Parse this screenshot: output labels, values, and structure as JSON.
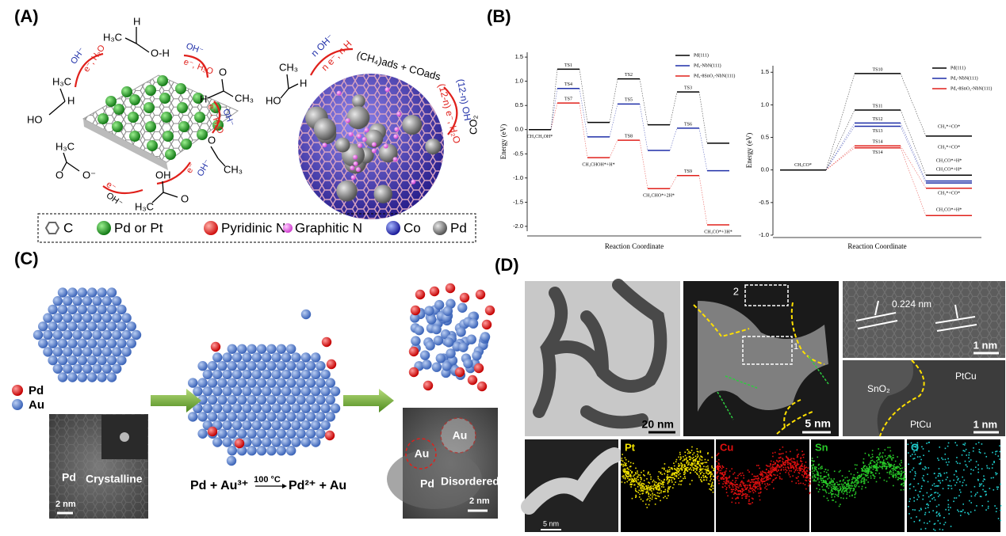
{
  "panel_a": {
    "label": "(A)",
    "left_arrows": [
      "OH⁻",
      "e⁻, H₂O",
      "OH⁻",
      "e⁻, H₂O",
      "OH⁻",
      "e⁻, H₂O",
      "e⁻",
      "OH⁻",
      "e⁻",
      "OH⁻"
    ],
    "molecules": [
      "H",
      "H₃C",
      "O-H",
      "H₃C",
      "H",
      "HO",
      "O",
      "H",
      "CH₃",
      "O",
      "CH₃",
      "H₃C",
      "O",
      "O⁻",
      "OH",
      "H₃C",
      "O"
    ],
    "right_arrows": [
      "n OH⁻",
      "n e⁻, n H",
      "(CH₄)ads + COads",
      "(12-n) OH⁻",
      "(12-n) e⁻, H₂O",
      "CO₂"
    ],
    "right_molecule": [
      "CH₃",
      "H",
      "HO"
    ],
    "legend": [
      "C",
      "Pd or Pt",
      "Pyridinic N",
      "Graphitic N",
      "Co",
      "Pd"
    ]
  },
  "panel_b": {
    "label": "(B)",
    "charts": [
      {
        "type": "energy-level",
        "ylabel": "Energy (eV)",
        "xlabel": "Reaction Coordinate",
        "ylim": [
          -2.1,
          1.6
        ],
        "yticks": [
          {
            "value": -2,
            "label": "-2.0"
          },
          -1.5,
          {
            "value": -1,
            "label": "-1.0"
          },
          -0.5,
          {
            "value": 0,
            "label": "0.0"
          },
          0.5,
          {
            "value": 1,
            "label": "1.0"
          },
          1.5
        ],
        "categories": [
          "CH₃CH₂OH*",
          null,
          "CH₃CHOH*+H*",
          null,
          "CH₃CHO*+2H*",
          null,
          "CH₃CO*+3H*"
        ],
        "series": [
          {
            "name": "Pd(111)",
            "color": "#000000",
            "paths": [
              {
                "values": [
                  0,
                  1.25,
                  0.15,
                  1.05,
                  0.1,
                  0.78,
                  -0.28
                ],
                "point_labels": [
                  null,
                  "TS1",
                  null,
                  "TS2",
                  null,
                  "TS3",
                  null
                ]
              }
            ]
          },
          {
            "name": "Pd₄-NbN(111)",
            "color": "#1f2fa8",
            "paths": [
              {
                "values": [
                  0,
                  0.85,
                  -0.15,
                  0.53,
                  -0.43,
                  0.03,
                  -0.85
                ],
                "point_labels": [
                  null,
                  "TS4",
                  null,
                  "TS5",
                  null,
                  "TS6",
                  null
                ]
              }
            ]
          },
          {
            "name": "Pd₄-8SnO₂-NbN(111)",
            "color": "#e0201b",
            "paths": [
              {
                "values": [
                  0,
                  0.55,
                  -0.58,
                  -0.22,
                  -1.22,
                  -0.95,
                  -1.97
                ],
                "point_labels": [
                  null,
                  "TS7",
                  null,
                  "TS8",
                  null,
                  "TS9",
                  null
                ]
              }
            ]
          }
        ]
      },
      {
        "type": "energy-level",
        "ylabel": "Energy (eV)",
        "xlabel": "Reaction Coordinate",
        "ylim": [
          -1.0,
          1.6
        ],
        "yticks": [
          {
            "value": -1,
            "label": "-1.0"
          },
          -0.5,
          {
            "value": 0,
            "label": "0.0"
          },
          0.5,
          {
            "value": 1,
            "label": "1.0"
          },
          1.5
        ],
        "categories": [
          "CH₃CO*",
          null,
          null
        ],
        "series": [
          {
            "name": "Pd(111)",
            "color": "#000000",
            "paths": [
              {
                "values": [
                  0,
                  1.48,
                  0.52
                ],
                "point_labels": [
                  null,
                  "TS10",
                  null
                ]
              },
              {
                "values": [
                  0,
                  0.92,
                  -0.08
                ],
                "point_labels": [
                  null,
                  "TS11",
                  null
                ]
              }
            ]
          },
          {
            "name": "Pd₄-NbN(111)",
            "color": "#1f2fa8",
            "paths": [
              {
                "values": [
                  0,
                  0.72,
                  -0.17
                ],
                "point_labels": [
                  null,
                  "TS12",
                  null
                ]
              },
              {
                "values": [
                  0,
                  0.67,
                  -0.2
                ],
                "point_labels": [
                  null,
                  "TS13",
                  null
                ]
              }
            ]
          },
          {
            "name": "Pd₄-8SnO₂-NbN(111)",
            "color": "#e0201b",
            "paths": [
              {
                "values": [
                  0,
                  0.37,
                  -0.28
                ],
                "point_labels": [
                  null,
                  "TS14",
                  null
                ]
              },
              {
                "values": [
                  0,
                  0.34,
                  -0.7
                ],
                "point_labels": [
                  null,
                  "TS14",
                  null
                ]
              }
            ]
          }
        ],
        "annotations": [
          "CH₃*+CO*",
          "CH₃*+CO*",
          "CH₂CO*+H*",
          "CH₂CO*+H*",
          "CH₃*+CO*",
          "CH₂CO*+H*"
        ]
      }
    ]
  },
  "panel_c": {
    "label": "(C)",
    "legend": [
      "Pd",
      "Au"
    ],
    "tem_left": {
      "phase": "Pd",
      "state": "Crystalline",
      "scale": "2 nm"
    },
    "equation": {
      "left": "Pd + Au³⁺",
      "condition": "100 °C",
      "right": "Pd²⁺ + Au"
    },
    "tem_right": {
      "labels": [
        "Au",
        "Au",
        "Pd"
      ],
      "state": "Disordered",
      "scale": "2 nm"
    }
  },
  "panel_d": {
    "label": "(D)",
    "tem": {
      "scale": "20 nm"
    },
    "haadf": {
      "regions": [
        "2",
        "1"
      ],
      "scale": "5 nm"
    },
    "hrtem": {
      "spacing": "0.224 nm",
      "scale": "1 nm"
    },
    "interface": {
      "labels": [
        "SnO₂",
        "PtCu",
        "PtCu"
      ],
      "scale": "1 nm"
    },
    "maps": {
      "scale": "5 nm",
      "elements": [
        "Pt",
        "Cu",
        "Sn",
        "O"
      ]
    }
  }
}
